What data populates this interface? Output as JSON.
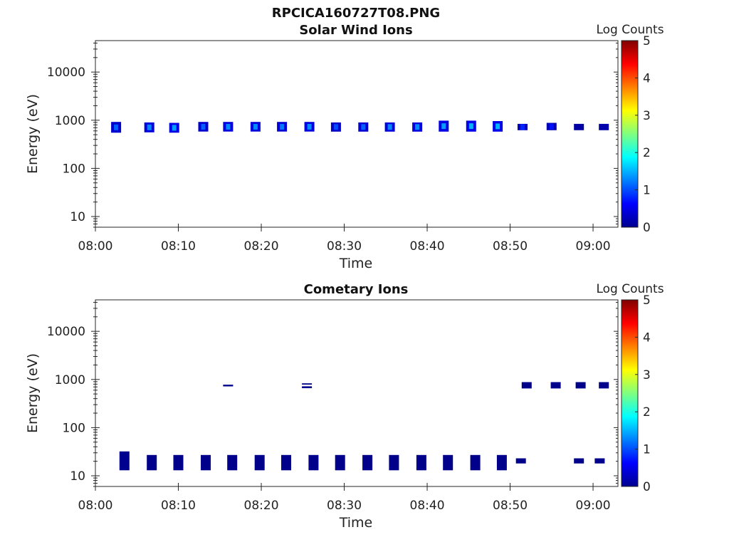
{
  "figure_title": "RPCICA160727T08.PNG",
  "chart_data": [
    {
      "type": "heatmap",
      "title": "Solar Wind Ions",
      "xlabel": "Time",
      "ylabel": "Energy (eV)",
      "y_scale": "log",
      "ylim": [
        6,
        45000
      ],
      "xlim": [
        "08:00",
        "09:03"
      ],
      "x_ticks": [
        "08:00",
        "08:10",
        "08:20",
        "08:30",
        "08:40",
        "08:50",
        "09:00"
      ],
      "y_ticks": [
        "10",
        "100",
        "1000",
        "10000"
      ],
      "colorbar": {
        "label": "Log Counts",
        "ticks": [
          "0",
          "1",
          "2",
          "3",
          "4",
          "5"
        ],
        "range": [
          0,
          5
        ],
        "colormap": "jet"
      },
      "blocks": [
        {
          "t": "08:02.5",
          "e_lo": 550,
          "e_hi": 920,
          "peak": 1.1
        },
        {
          "t": "08:06.5",
          "e_lo": 560,
          "e_hi": 900,
          "peak": 1.3
        },
        {
          "t": "08:09.5",
          "e_lo": 550,
          "e_hi": 880,
          "peak": 1.4
        },
        {
          "t": "08:13.0",
          "e_lo": 580,
          "e_hi": 920,
          "peak": 1.1
        },
        {
          "t": "08:16.0",
          "e_lo": 580,
          "e_hi": 920,
          "peak": 1.3
        },
        {
          "t": "08:19.3",
          "e_lo": 580,
          "e_hi": 920,
          "peak": 1.3
        },
        {
          "t": "08:22.5",
          "e_lo": 580,
          "e_hi": 920,
          "peak": 1.2
        },
        {
          "t": "08:25.8",
          "e_lo": 580,
          "e_hi": 920,
          "peak": 1.3
        },
        {
          "t": "08:29.0",
          "e_lo": 580,
          "e_hi": 900,
          "peak": 1.0
        },
        {
          "t": "08:32.3",
          "e_lo": 580,
          "e_hi": 900,
          "peak": 1.1
        },
        {
          "t": "08:35.5",
          "e_lo": 580,
          "e_hi": 900,
          "peak": 1.3
        },
        {
          "t": "08:38.8",
          "e_lo": 580,
          "e_hi": 900,
          "peak": 1.3
        },
        {
          "t": "08:42.0",
          "e_lo": 580,
          "e_hi": 980,
          "peak": 1.4
        },
        {
          "t": "08:45.3",
          "e_lo": 580,
          "e_hi": 980,
          "peak": 1.5
        },
        {
          "t": "08:48.5",
          "e_lo": 580,
          "e_hi": 960,
          "peak": 1.5
        },
        {
          "t": "08:51.5",
          "e_lo": 620,
          "e_hi": 840,
          "peak": 0.8
        },
        {
          "t": "08:55.0",
          "e_lo": 620,
          "e_hi": 880,
          "peak": 0.7
        },
        {
          "t": "08:58.3",
          "e_lo": 620,
          "e_hi": 840,
          "peak": 0.5
        },
        {
          "t": "09:01.3",
          "e_lo": 620,
          "e_hi": 840,
          "peak": 0.6
        }
      ]
    },
    {
      "type": "heatmap",
      "title": "Cometary Ions",
      "xlabel": "Time",
      "ylabel": "Energy (eV)",
      "y_scale": "log",
      "ylim": [
        6,
        45000
      ],
      "xlim": [
        "08:00",
        "09:03"
      ],
      "x_ticks": [
        "08:00",
        "08:10",
        "08:20",
        "08:30",
        "08:40",
        "08:50",
        "09:00"
      ],
      "y_ticks": [
        "10",
        "100",
        "1000",
        "10000"
      ],
      "colorbar": {
        "label": "Log Counts",
        "ticks": [
          "0",
          "1",
          "2",
          "3",
          "4",
          "5"
        ],
        "range": [
          0,
          5
        ],
        "colormap": "jet"
      },
      "blocks": [
        {
          "t": "08:03.5",
          "e_lo": 13,
          "e_hi": 32,
          "peak": 0.2
        },
        {
          "t": "08:06.8",
          "e_lo": 13,
          "e_hi": 27,
          "peak": 0.1
        },
        {
          "t": "08:10.0",
          "e_lo": 13,
          "e_hi": 27,
          "peak": 0.1
        },
        {
          "t": "08:13.3",
          "e_lo": 13,
          "e_hi": 27,
          "peak": 0.1
        },
        {
          "t": "08:16.5",
          "e_lo": 13,
          "e_hi": 27,
          "peak": 0.1
        },
        {
          "t": "08:19.8",
          "e_lo": 13,
          "e_hi": 27,
          "peak": 0.1
        },
        {
          "t": "08:23.0",
          "e_lo": 13,
          "e_hi": 27,
          "peak": 0.1
        },
        {
          "t": "08:26.3",
          "e_lo": 13,
          "e_hi": 27,
          "peak": 0.1
        },
        {
          "t": "08:29.5",
          "e_lo": 13,
          "e_hi": 27,
          "peak": 0.1
        },
        {
          "t": "08:32.8",
          "e_lo": 13,
          "e_hi": 27,
          "peak": 0.1
        },
        {
          "t": "08:36.0",
          "e_lo": 13,
          "e_hi": 27,
          "peak": 0.1
        },
        {
          "t": "08:39.3",
          "e_lo": 13,
          "e_hi": 27,
          "peak": 0.1
        },
        {
          "t": "08:42.5",
          "e_lo": 13,
          "e_hi": 27,
          "peak": 0.1
        },
        {
          "t": "08:45.8",
          "e_lo": 13,
          "e_hi": 27,
          "peak": 0.1
        },
        {
          "t": "08:49.0",
          "e_lo": 13,
          "e_hi": 27,
          "peak": 0.1
        },
        {
          "t": "08:51.3",
          "e_lo": 18,
          "e_hi": 23,
          "peak": 0.1
        },
        {
          "t": "08:58.3",
          "e_lo": 18,
          "e_hi": 23,
          "peak": 0.1
        },
        {
          "t": "09:00.8",
          "e_lo": 18,
          "e_hi": 23,
          "peak": 0.1
        },
        {
          "t": "08:16.0",
          "e_lo": 720,
          "e_hi": 780,
          "peak": 0.1
        },
        {
          "t": "08:25.5",
          "e_lo": 660,
          "e_hi": 720,
          "peak": 0.1
        },
        {
          "t": "08:25.5",
          "e_lo": 780,
          "e_hi": 830,
          "peak": 0.1
        },
        {
          "t": "08:52.0",
          "e_lo": 650,
          "e_hi": 880,
          "peak": 0.1
        },
        {
          "t": "08:55.5",
          "e_lo": 650,
          "e_hi": 880,
          "peak": 0.1
        },
        {
          "t": "08:58.5",
          "e_lo": 650,
          "e_hi": 880,
          "peak": 0.1
        },
        {
          "t": "09:01.3",
          "e_lo": 650,
          "e_hi": 880,
          "peak": 0.1
        }
      ]
    }
  ]
}
